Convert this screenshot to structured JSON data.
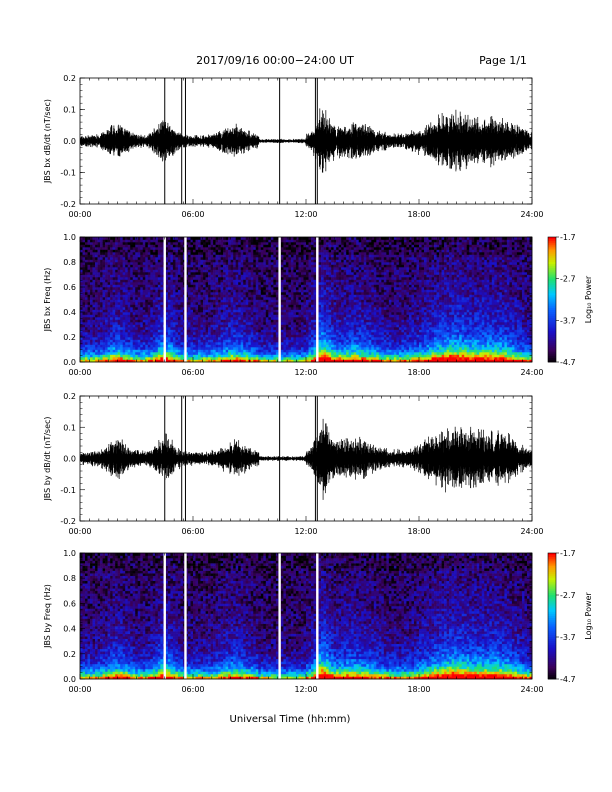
{
  "header": {
    "title": "2017/09/16  00:00−24:00 UT",
    "page": "Page 1/1"
  },
  "xlabel": "Universal Time (hh:mm)",
  "x_ticks": [
    "00:00",
    "06:00",
    "12:00",
    "18:00",
    "24:00"
  ],
  "colorbar": {
    "label": "Log₁₀ Power",
    "ticks": [
      "-1.7",
      "-2.7",
      "-3.7",
      "-4.7"
    ]
  },
  "chart_data": [
    {
      "type": "line",
      "ylabel": "JBS bx dB/dt (nT/sec)",
      "x_range_hours": [
        0,
        24
      ],
      "ylim": [
        -0.2,
        0.2
      ],
      "y_ticks": [
        "0.2",
        "0.1",
        "0.0",
        "-0.1",
        "-0.2"
      ],
      "spikes_hours": [
        4.5,
        5.4,
        5.6,
        10.6,
        12.5,
        12.6
      ]
    },
    {
      "type": "heatmap",
      "ylabel": "JBS bx Freq (Hz)",
      "x_range_hours": [
        0,
        24
      ],
      "ylim": [
        0.0,
        1.0
      ],
      "y_ticks": [
        "1.0",
        "0.8",
        "0.6",
        "0.4",
        "0.2",
        "0.0"
      ],
      "zlim": [
        -4.7,
        -1.7
      ],
      "data_gaps_hours": [
        4.5,
        5.6,
        10.6,
        12.6
      ]
    },
    {
      "type": "line",
      "ylabel": "JBS by dB/dt (nT/sec)",
      "x_range_hours": [
        0,
        24
      ],
      "ylim": [
        -0.2,
        0.2
      ],
      "y_ticks": [
        "0.2",
        "0.1",
        "0.0",
        "-0.1",
        "-0.2"
      ],
      "spikes_hours": [
        4.5,
        5.4,
        5.6,
        10.6,
        12.5,
        12.6
      ]
    },
    {
      "type": "heatmap",
      "ylabel": "JBS by Freq (Hz)",
      "x_range_hours": [
        0,
        24
      ],
      "ylim": [
        0.0,
        1.0
      ],
      "y_ticks": [
        "1.0",
        "0.8",
        "0.6",
        "0.4",
        "0.2",
        "0.0"
      ],
      "zlim": [
        -4.7,
        -1.7
      ],
      "data_gaps_hours": [
        4.5,
        5.6,
        10.6,
        12.6
      ]
    }
  ]
}
